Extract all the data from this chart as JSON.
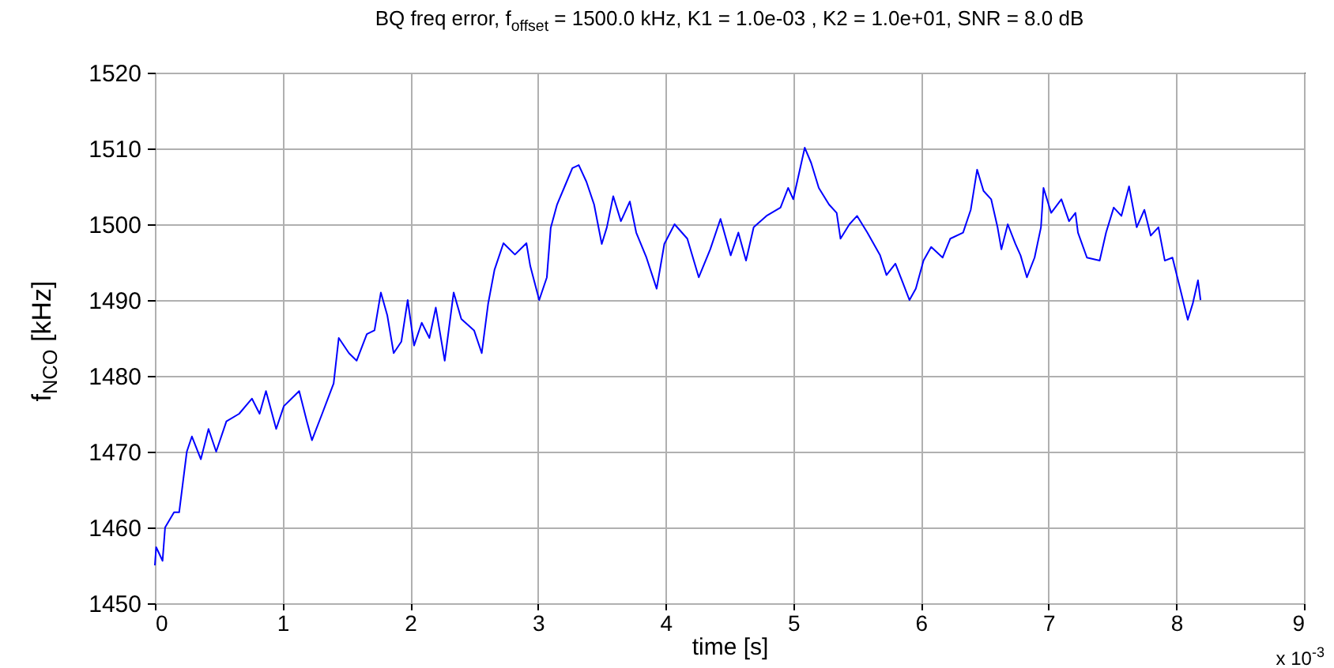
{
  "chart_data": {
    "type": "line",
    "title": "BQ freq error, f$_{offset}$ = 1500.0 kHz, K1 = 1.0e-03 , K2 = 1.0e+01, SNR = 8.0 dB",
    "xlabel": "time [s]",
    "ylabel": "f$_{NCO}$ [kHz]",
    "annotations": [
      "x 10$^{-3}$"
    ],
    "xlim": [
      0,
      9
    ],
    "xticks": [
      0,
      1,
      2,
      3,
      4,
      5,
      6,
      7,
      8,
      9
    ],
    "ylim": [
      1450,
      1520
    ],
    "yticks": [
      1450,
      1460,
      1470,
      1480,
      1490,
      1500,
      1510,
      1520
    ],
    "grid": true,
    "series": [
      {
        "color": "#0000ff",
        "x": [
          0,
          0.01,
          0.06,
          0.08,
          0.15,
          0.19,
          0.22,
          0.25,
          0.29,
          0.36,
          0.42,
          0.48,
          0.56,
          0.66,
          0.76,
          0.82,
          0.87,
          0.95,
          1.01,
          1.13,
          1.19,
          1.23,
          1.31,
          1.4,
          1.44,
          1.52,
          1.58,
          1.66,
          1.72,
          1.77,
          1.82,
          1.87,
          1.93,
          1.98,
          2.03,
          2.09,
          2.15,
          2.2,
          2.27,
          2.34,
          2.4,
          2.5,
          2.56,
          2.61,
          2.66,
          2.73,
          2.82,
          2.91,
          2.94,
          3.01,
          3.07,
          3.1,
          3.15,
          3.21,
          3.27,
          3.32,
          3.38,
          3.44,
          3.5,
          3.54,
          3.59,
          3.65,
          3.72,
          3.77,
          3.85,
          3.93,
          3.99,
          4.07,
          4.17,
          4.26,
          4.35,
          4.43,
          4.51,
          4.57,
          4.63,
          4.69,
          4.79,
          4.9,
          4.96,
          5.0,
          5.09,
          5.14,
          5.2,
          5.28,
          5.34,
          5.37,
          5.44,
          5.5,
          5.58,
          5.68,
          5.73,
          5.8,
          5.86,
          5.91,
          5.96,
          6.02,
          6.08,
          6.17,
          6.23,
          6.33,
          6.39,
          6.44,
          6.49,
          6.55,
          6.6,
          6.63,
          6.68,
          6.74,
          6.78,
          6.83,
          6.89,
          6.94,
          6.96,
          7.02,
          7.1,
          7.16,
          7.21,
          7.23,
          7.3,
          7.4,
          7.45,
          7.51,
          7.57,
          7.63,
          7.69,
          7.75,
          7.8,
          7.86,
          7.91,
          7.97,
          8.03,
          8.09,
          8.13,
          8.17,
          8.19
        ],
        "values": [
          1455,
          1457.4,
          1455.6,
          1460,
          1462,
          1462,
          1466,
          1470,
          1472,
          1469,
          1473,
          1470,
          1474,
          1475,
          1477,
          1475,
          1478,
          1473,
          1476,
          1478,
          1474,
          1471.5,
          1475,
          1479,
          1485,
          1483,
          1482,
          1485.5,
          1486,
          1491,
          1488,
          1483,
          1484.5,
          1490,
          1484,
          1487,
          1485,
          1489,
          1482,
          1491,
          1487.5,
          1486,
          1483,
          1489.5,
          1494,
          1497.5,
          1496,
          1497.5,
          1494.5,
          1490,
          1493,
          1499.5,
          1502.6,
          1505,
          1507.4,
          1507.8,
          1505.6,
          1502.6,
          1497.4,
          1499.6,
          1503.7,
          1500.4,
          1503,
          1498.9,
          1495.6,
          1491.5,
          1497.4,
          1500,
          1498.1,
          1493,
          1496.7,
          1500.7,
          1495.9,
          1498.9,
          1495.2,
          1499.6,
          1501.1,
          1502.2,
          1504.8,
          1503.3,
          1510.1,
          1508.1,
          1504.8,
          1502.6,
          1501.5,
          1498.1,
          1500,
          1501.1,
          1498.9,
          1495.9,
          1493.3,
          1494.8,
          1492.2,
          1490,
          1491.5,
          1495.2,
          1497,
          1495.6,
          1498.1,
          1498.9,
          1501.9,
          1507.2,
          1504.4,
          1503.3,
          1499.6,
          1496.7,
          1500,
          1497.4,
          1495.9,
          1493,
          1495.6,
          1499.6,
          1504.8,
          1501.5,
          1503.3,
          1500.4,
          1501.5,
          1498.9,
          1495.6,
          1495.2,
          1498.9,
          1502.2,
          1501.1,
          1505,
          1499.6,
          1501.9,
          1498.5,
          1499.6,
          1495.2,
          1495.6,
          1491.5,
          1487.4,
          1489.6,
          1492.6,
          1490
        ]
      }
    ]
  }
}
